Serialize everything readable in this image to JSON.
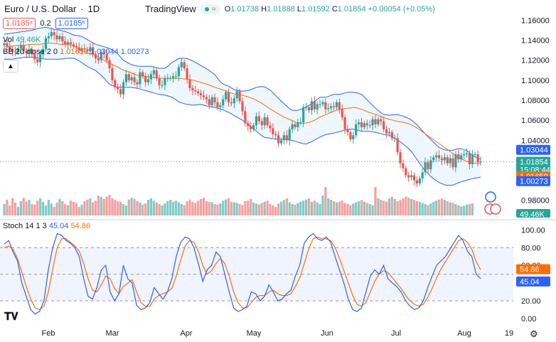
{
  "header": {
    "symbol": "Euro / U.S. Dollar",
    "interval": "1D",
    "brand": "TradingView",
    "wave_glyph": "≈",
    "o_label": "O",
    "o": "1.01738",
    "h_label": "H",
    "h": "1.01888",
    "l_label": "L",
    "l": "1.01592",
    "c_label": "C",
    "c": "1.01854",
    "change": "+0.00054 (+0.05%)"
  },
  "bid": "1.0185⁴",
  "spread": "0.2",
  "ask": "1.0185⁶",
  "vol_label": "Vol",
  "vol_value": "49.46K",
  "bb_label": "BB 20 close 2 0",
  "bb_basis": "1.01659",
  "bb_upper": "1.03044",
  "bb_lower": "1.00273",
  "stoch_label": "Stoch 14 1 3",
  "stoch_k": "45.04",
  "stoch_d": "54.86",
  "colors": {
    "up": "#26a69a",
    "down": "#ef5350",
    "bb_band": "#2962ff",
    "bb_basis": "#ff6d00",
    "stoch_k": "#2962ff",
    "stoch_d": "#ff6d00",
    "vol_up": "#80cbc4",
    "vol_down": "#f4a09f"
  },
  "chart_data": {
    "type": "candlestick",
    "price_axis": {
      "min": 0.98,
      "max": 1.16,
      "ticks": [
        "1.16000",
        "1.14000",
        "1.12000",
        "1.10000",
        "1.08000",
        "1.06000",
        "1.04000",
        "0.98000"
      ]
    },
    "price_tags": {
      "last": "1.01854",
      "countdown": "15:08:44",
      "bb_upper": "1.03044",
      "bb_basis": "1.01659",
      "bb_lower": "1.00273",
      "volume": "49.46K"
    },
    "stoch_axis": {
      "min": 0,
      "max": 100,
      "ticks": [
        "100.00",
        "80.00",
        "60.00",
        "40.00",
        "20.00",
        "0.00"
      ],
      "band": [
        20,
        80
      ]
    },
    "x_labels": [
      "Feb",
      "Mar",
      "Apr",
      "May",
      "Jun",
      "Jul",
      "Aug",
      "19"
    ],
    "closes": [
      1.137,
      1.134,
      1.131,
      1.129,
      1.128,
      1.132,
      1.135,
      1.129,
      1.127,
      1.131,
      1.126,
      1.121,
      1.118,
      1.126,
      1.131,
      1.142,
      1.144,
      1.148,
      1.145,
      1.141,
      1.144,
      1.139,
      1.136,
      1.138,
      1.136,
      1.134,
      1.133,
      1.13,
      1.132,
      1.131,
      1.129,
      1.133,
      1.126,
      1.122,
      1.12,
      1.128,
      1.126,
      1.12,
      1.112,
      1.1,
      1.093,
      1.091,
      1.086,
      1.098,
      1.106,
      1.1,
      1.103,
      1.098,
      1.096,
      1.108,
      1.104,
      1.098,
      1.101,
      1.106,
      1.11,
      1.102,
      1.095,
      1.095,
      1.102,
      1.102,
      1.102,
      1.104,
      1.104,
      1.113,
      1.118,
      1.112,
      1.101,
      1.092,
      1.09,
      1.089,
      1.087,
      1.085,
      1.083,
      1.081,
      1.075,
      1.083,
      1.078,
      1.073,
      1.075,
      1.081,
      1.088,
      1.078,
      1.077,
      1.082,
      1.089,
      1.079,
      1.069,
      1.057,
      1.054,
      1.051,
      1.055,
      1.064,
      1.059,
      1.055,
      1.063,
      1.055,
      1.052,
      1.046,
      1.045,
      1.037,
      1.04,
      1.045,
      1.04,
      1.051,
      1.056,
      1.053,
      1.058,
      1.058,
      1.073,
      1.073,
      1.07,
      1.079,
      1.071,
      1.076,
      1.076,
      1.078,
      1.071,
      1.072,
      1.074,
      1.073,
      1.078,
      1.071,
      1.063,
      1.051,
      1.048,
      1.041,
      1.045,
      1.056,
      1.058,
      1.053,
      1.057,
      1.055,
      1.055,
      1.061,
      1.056,
      1.061,
      1.059,
      1.051,
      1.047,
      1.048,
      1.042,
      1.042,
      1.028,
      1.017,
      1.012,
      1.005,
      1.003,
      1.005,
      1.0,
      0.997,
      1.002,
      1.008,
      1.018,
      1.011,
      1.02,
      1.023,
      1.025,
      1.022,
      1.02,
      1.023,
      1.017,
      1.022,
      1.013,
      1.026,
      1.021,
      1.025,
      1.026,
      1.027,
      1.016,
      1.026,
      1.026,
      1.018,
      1.019
    ],
    "bb_upper_series": [
      1.146,
      1.147,
      1.148,
      1.149,
      1.15,
      1.152,
      1.153,
      1.151,
      1.15,
      1.148,
      1.145,
      1.144,
      1.14,
      1.136,
      1.134,
      1.132,
      1.128,
      1.12,
      1.116,
      1.114,
      1.114,
      1.114,
      1.112,
      1.112,
      1.118,
      1.122,
      1.122,
      1.119,
      1.115,
      1.111,
      1.106,
      1.097,
      1.094,
      1.09,
      1.089,
      1.09,
      1.093,
      1.094,
      1.09,
      1.083,
      1.076,
      1.07,
      1.07,
      1.073,
      1.077,
      1.083,
      1.083,
      1.086,
      1.086,
      1.088,
      1.088,
      1.086,
      1.079,
      1.072,
      1.066,
      1.065,
      1.066,
      1.064,
      1.061,
      1.055,
      1.047,
      1.04,
      1.033,
      1.03,
      1.03,
      1.032,
      1.03,
      1.024,
      1.021
    ],
    "bb_basis_series": [
      1.133,
      1.134,
      1.135,
      1.135,
      1.136,
      1.136,
      1.137,
      1.137,
      1.136,
      1.136,
      1.134,
      1.13,
      1.127,
      1.125,
      1.121,
      1.117,
      1.114,
      1.11,
      1.108,
      1.105,
      1.104,
      1.103,
      1.102,
      1.102,
      1.102,
      1.102,
      1.101,
      1.1,
      1.098,
      1.096,
      1.093,
      1.091,
      1.088,
      1.086,
      1.085,
      1.083,
      1.08,
      1.076,
      1.071,
      1.067,
      1.063,
      1.06,
      1.057,
      1.057,
      1.059,
      1.063,
      1.066,
      1.069,
      1.071,
      1.072,
      1.073,
      1.071,
      1.068,
      1.066,
      1.063,
      1.061,
      1.059,
      1.058,
      1.056,
      1.052,
      1.047,
      1.042,
      1.037,
      1.032,
      1.027,
      1.022,
      1.019,
      1.017,
      1.017
    ],
    "bb_lower_series": [
      1.121,
      1.121,
      1.122,
      1.123,
      1.123,
      1.122,
      1.121,
      1.121,
      1.121,
      1.122,
      1.122,
      1.118,
      1.113,
      1.11,
      1.104,
      1.096,
      1.093,
      1.093,
      1.093,
      1.092,
      1.09,
      1.088,
      1.086,
      1.085,
      1.083,
      1.078,
      1.076,
      1.075,
      1.076,
      1.074,
      1.073,
      1.071,
      1.068,
      1.064,
      1.06,
      1.055,
      1.049,
      1.043,
      1.042,
      1.041,
      1.041,
      1.04,
      1.038,
      1.036,
      1.039,
      1.043,
      1.046,
      1.047,
      1.049,
      1.051,
      1.051,
      1.049,
      1.049,
      1.048,
      1.046,
      1.045,
      1.041,
      1.036,
      1.03,
      1.02,
      1.01,
      1.003,
      0.998,
      0.995,
      0.995,
      0.998,
      1.0,
      1.002,
      1.003
    ],
    "volume": [
      40,
      55,
      35,
      60,
      45,
      30,
      50,
      62,
      48,
      55,
      40,
      38,
      52,
      60,
      48,
      35,
      55,
      42,
      30,
      45,
      58,
      50,
      40,
      36,
      52,
      48,
      44,
      30,
      38,
      50,
      55,
      60,
      46,
      52,
      70,
      65,
      58,
      66,
      72,
      60,
      55,
      50,
      48,
      40,
      35,
      56,
      62,
      58,
      50,
      45,
      38,
      42,
      55,
      60,
      52,
      46,
      40,
      35,
      42,
      50,
      55,
      48,
      52,
      46,
      40,
      36,
      50,
      56,
      48,
      44,
      52,
      58,
      62,
      50,
      48,
      46,
      40,
      38,
      42,
      52,
      56,
      60,
      48,
      46,
      44,
      40,
      36,
      50,
      52,
      58,
      46,
      42,
      38,
      44,
      48,
      52,
      40,
      36,
      30,
      42,
      48,
      54,
      60,
      46,
      40,
      38,
      44,
      48,
      52,
      56,
      60,
      48,
      52,
      46,
      40,
      70,
      100,
      60,
      55,
      50,
      46,
      48,
      52,
      44,
      40,
      36,
      42,
      46,
      50,
      54,
      48,
      44,
      40,
      36,
      100,
      60,
      55,
      52,
      48,
      60,
      66,
      58,
      50,
      54,
      60,
      66,
      62,
      58,
      55,
      50,
      48,
      44,
      40,
      36,
      42,
      48,
      52,
      56,
      60,
      55,
      50,
      46,
      44,
      40,
      36,
      32,
      34,
      38,
      40,
      42
    ],
    "stoch_k_series": [
      84,
      88,
      75,
      65,
      40,
      25,
      10,
      5,
      8,
      20,
      55,
      80,
      96,
      94,
      88,
      85,
      80,
      70,
      45,
      25,
      22,
      35,
      55,
      60,
      30,
      20,
      28,
      60,
      45,
      40,
      15,
      10,
      12,
      18,
      35,
      28,
      22,
      30,
      45,
      70,
      86,
      92,
      90,
      80,
      62,
      42,
      55,
      60,
      75,
      70,
      50,
      30,
      12,
      8,
      10,
      14,
      30,
      28,
      20,
      25,
      38,
      30,
      20,
      22,
      28,
      32,
      48,
      60,
      85,
      92,
      96,
      90,
      88,
      92,
      86,
      70,
      55,
      40,
      22,
      10,
      8,
      12,
      30,
      48,
      55,
      50,
      60,
      45,
      40,
      36,
      30,
      20,
      14,
      10,
      12,
      20,
      35,
      48,
      60,
      65,
      70,
      78,
      86,
      94,
      88,
      76,
      70,
      50,
      45
    ],
    "stoch_d_series": [
      80,
      82,
      78,
      68,
      52,
      36,
      22,
      12,
      10,
      14,
      30,
      56,
      80,
      90,
      90,
      86,
      82,
      76,
      62,
      45,
      32,
      30,
      38,
      48,
      45,
      34,
      28,
      36,
      40,
      44,
      30,
      18,
      14,
      14,
      22,
      26,
      28,
      30,
      34,
      48,
      66,
      82,
      88,
      86,
      76,
      60,
      50,
      54,
      62,
      68,
      62,
      48,
      30,
      18,
      12,
      12,
      18,
      24,
      26,
      26,
      30,
      32,
      28,
      26,
      26,
      28,
      36,
      46,
      62,
      78,
      90,
      92,
      90,
      90,
      88,
      80,
      68,
      54,
      40,
      26,
      16,
      14,
      18,
      30,
      42,
      50,
      54,
      52,
      46,
      40,
      34,
      26,
      20,
      16,
      14,
      16,
      24,
      34,
      46,
      56,
      64,
      72,
      80,
      88,
      90,
      86,
      78,
      64,
      55
    ]
  }
}
